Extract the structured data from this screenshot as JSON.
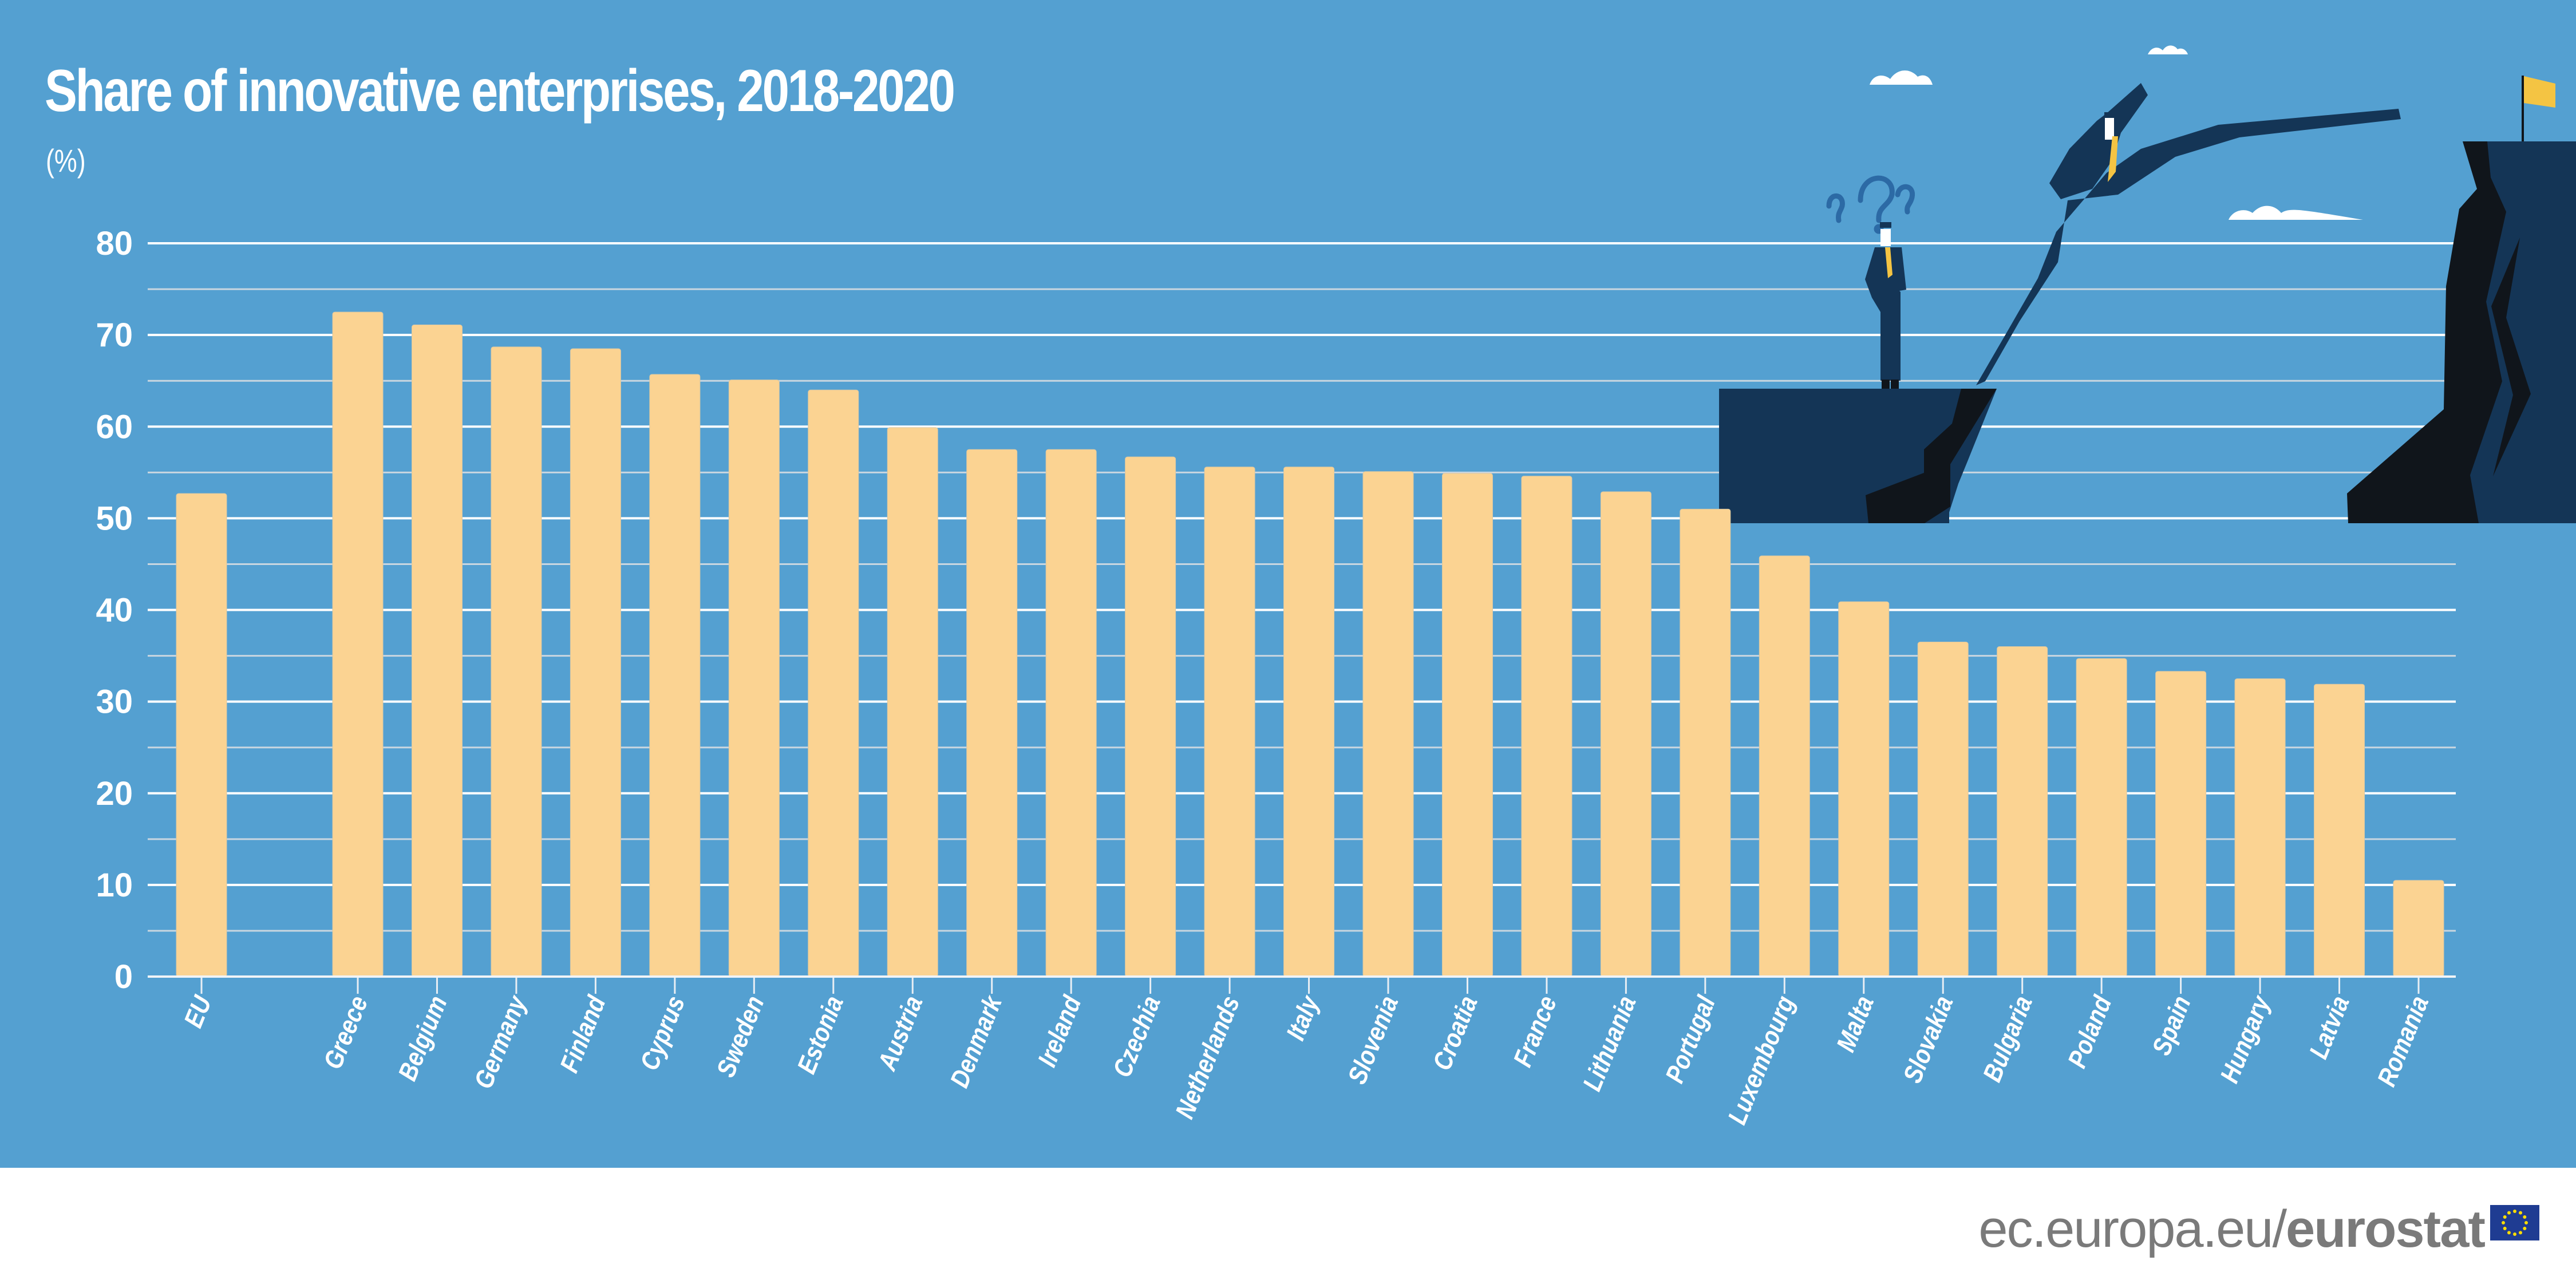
{
  "header": {
    "title": "Share of innovative enterprises, 2018-2020",
    "unit": "(%)"
  },
  "footer": {
    "url_prefix": "ec.europa.eu/",
    "url_brand": "eurostat",
    "logo": "eu-flag-icon"
  },
  "colors": {
    "background": "#54A0D1",
    "bar": "#FBD392",
    "gridline_major": "#FFFFFF",
    "gridline_minor": "#C9D6E0",
    "illustration_navy": "#143556",
    "illustration_dark": "#10151B",
    "flag": "#F4C443"
  },
  "chart_data": {
    "type": "bar",
    "title": "Share of innovative enterprises, 2018-2020",
    "ylabel": "(%)",
    "xlabel": "",
    "ylim": [
      0,
      80
    ],
    "yticks": [
      0,
      10,
      20,
      30,
      40,
      50,
      60,
      70,
      80
    ],
    "grid": true,
    "legend": "none",
    "categories": [
      "EU",
      "Greece",
      "Belgium",
      "Germany",
      "Finland",
      "Cyprus",
      "Sweden",
      "Estonia",
      "Austria",
      "Denmark",
      "Ireland",
      "Czechia",
      "Netherlands",
      "Italy",
      "Slovenia",
      "Croatia",
      "France",
      "Lithuania",
      "Portugal",
      "Luxembourg",
      "Malta",
      "Slovakia",
      "Bulgaria",
      "Poland",
      "Spain",
      "Hungary",
      "Latvia",
      "Romania"
    ],
    "values": [
      52.7,
      72.5,
      71.1,
      68.7,
      68.5,
      65.7,
      65.1,
      64.0,
      59.9,
      57.5,
      57.5,
      56.7,
      55.6,
      55.6,
      55.1,
      54.9,
      54.6,
      52.9,
      51.0,
      45.9,
      40.9,
      36.5,
      36.0,
      34.7,
      33.3,
      32.5,
      31.9,
      10.5
    ]
  },
  "illustration": {
    "elements": [
      "cloud-icon",
      "cloud-icon",
      "cloud-icon",
      "question-marks-icon",
      "thinking-businessman-icon",
      "leaping-businessman-icon",
      "left-cliff-icon",
      "right-cliff-icon",
      "goal-flag-icon"
    ]
  }
}
